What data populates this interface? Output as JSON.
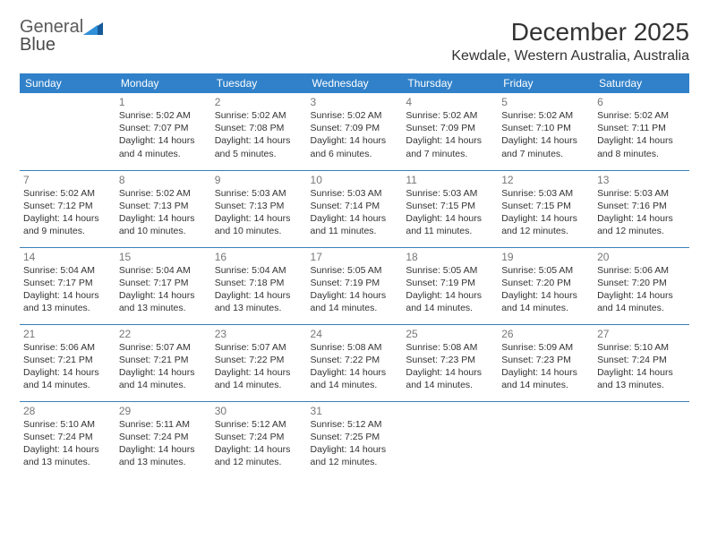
{
  "brand": {
    "part1": "General",
    "part2": "Blue"
  },
  "title": "December 2025",
  "location": "Kewdale, Western Australia, Australia",
  "colors": {
    "header_bg": "#3081c9",
    "header_text": "#ffffff",
    "row_border": "#3b7fb8",
    "daynum": "#777777",
    "body_text": "#333333",
    "logo_gray": "#5a5a5a",
    "logo_blue_dark": "#155a9a",
    "logo_blue_light": "#2f8fd8"
  },
  "dayNames": [
    "Sunday",
    "Monday",
    "Tuesday",
    "Wednesday",
    "Thursday",
    "Friday",
    "Saturday"
  ],
  "weeks": [
    [
      null,
      {
        "n": "1",
        "sr": "5:02 AM",
        "ss": "7:07 PM",
        "dl": "14 hours and 4 minutes."
      },
      {
        "n": "2",
        "sr": "5:02 AM",
        "ss": "7:08 PM",
        "dl": "14 hours and 5 minutes."
      },
      {
        "n": "3",
        "sr": "5:02 AM",
        "ss": "7:09 PM",
        "dl": "14 hours and 6 minutes."
      },
      {
        "n": "4",
        "sr": "5:02 AM",
        "ss": "7:09 PM",
        "dl": "14 hours and 7 minutes."
      },
      {
        "n": "5",
        "sr": "5:02 AM",
        "ss": "7:10 PM",
        "dl": "14 hours and 7 minutes."
      },
      {
        "n": "6",
        "sr": "5:02 AM",
        "ss": "7:11 PM",
        "dl": "14 hours and 8 minutes."
      }
    ],
    [
      {
        "n": "7",
        "sr": "5:02 AM",
        "ss": "7:12 PM",
        "dl": "14 hours and 9 minutes."
      },
      {
        "n": "8",
        "sr": "5:02 AM",
        "ss": "7:13 PM",
        "dl": "14 hours and 10 minutes."
      },
      {
        "n": "9",
        "sr": "5:03 AM",
        "ss": "7:13 PM",
        "dl": "14 hours and 10 minutes."
      },
      {
        "n": "10",
        "sr": "5:03 AM",
        "ss": "7:14 PM",
        "dl": "14 hours and 11 minutes."
      },
      {
        "n": "11",
        "sr": "5:03 AM",
        "ss": "7:15 PM",
        "dl": "14 hours and 11 minutes."
      },
      {
        "n": "12",
        "sr": "5:03 AM",
        "ss": "7:15 PM",
        "dl": "14 hours and 12 minutes."
      },
      {
        "n": "13",
        "sr": "5:03 AM",
        "ss": "7:16 PM",
        "dl": "14 hours and 12 minutes."
      }
    ],
    [
      {
        "n": "14",
        "sr": "5:04 AM",
        "ss": "7:17 PM",
        "dl": "14 hours and 13 minutes."
      },
      {
        "n": "15",
        "sr": "5:04 AM",
        "ss": "7:17 PM",
        "dl": "14 hours and 13 minutes."
      },
      {
        "n": "16",
        "sr": "5:04 AM",
        "ss": "7:18 PM",
        "dl": "14 hours and 13 minutes."
      },
      {
        "n": "17",
        "sr": "5:05 AM",
        "ss": "7:19 PM",
        "dl": "14 hours and 14 minutes."
      },
      {
        "n": "18",
        "sr": "5:05 AM",
        "ss": "7:19 PM",
        "dl": "14 hours and 14 minutes."
      },
      {
        "n": "19",
        "sr": "5:05 AM",
        "ss": "7:20 PM",
        "dl": "14 hours and 14 minutes."
      },
      {
        "n": "20",
        "sr": "5:06 AM",
        "ss": "7:20 PM",
        "dl": "14 hours and 14 minutes."
      }
    ],
    [
      {
        "n": "21",
        "sr": "5:06 AM",
        "ss": "7:21 PM",
        "dl": "14 hours and 14 minutes."
      },
      {
        "n": "22",
        "sr": "5:07 AM",
        "ss": "7:21 PM",
        "dl": "14 hours and 14 minutes."
      },
      {
        "n": "23",
        "sr": "5:07 AM",
        "ss": "7:22 PM",
        "dl": "14 hours and 14 minutes."
      },
      {
        "n": "24",
        "sr": "5:08 AM",
        "ss": "7:22 PM",
        "dl": "14 hours and 14 minutes."
      },
      {
        "n": "25",
        "sr": "5:08 AM",
        "ss": "7:23 PM",
        "dl": "14 hours and 14 minutes."
      },
      {
        "n": "26",
        "sr": "5:09 AM",
        "ss": "7:23 PM",
        "dl": "14 hours and 14 minutes."
      },
      {
        "n": "27",
        "sr": "5:10 AM",
        "ss": "7:24 PM",
        "dl": "14 hours and 13 minutes."
      }
    ],
    [
      {
        "n": "28",
        "sr": "5:10 AM",
        "ss": "7:24 PM",
        "dl": "14 hours and 13 minutes."
      },
      {
        "n": "29",
        "sr": "5:11 AM",
        "ss": "7:24 PM",
        "dl": "14 hours and 13 minutes."
      },
      {
        "n": "30",
        "sr": "5:12 AM",
        "ss": "7:24 PM",
        "dl": "14 hours and 12 minutes."
      },
      {
        "n": "31",
        "sr": "5:12 AM",
        "ss": "7:25 PM",
        "dl": "14 hours and 12 minutes."
      },
      null,
      null,
      null
    ]
  ],
  "labels": {
    "sunrise": "Sunrise:",
    "sunset": "Sunset:",
    "daylight": "Daylight:"
  }
}
